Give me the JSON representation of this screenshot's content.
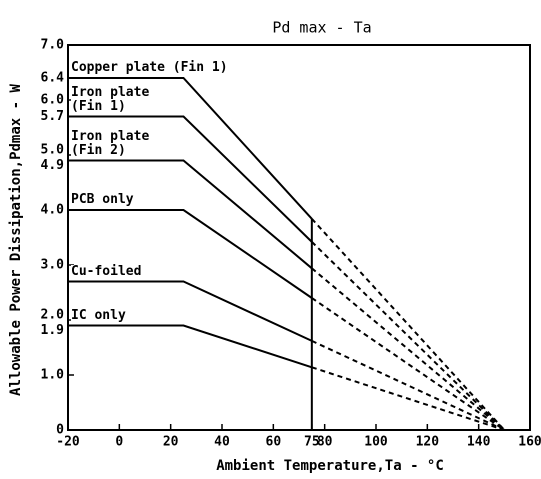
{
  "chart_data": {
    "type": "line",
    "title": "Pd max - Ta",
    "xlabel": "Ambient Temperature,Ta - °C",
    "ylabel": "Allowable Power Dissipation,Pdmax - W",
    "x": [
      -20,
      25,
      75,
      150
    ],
    "series": [
      {
        "name": "Copper plate (Fin 1)",
        "color": "#000000",
        "values": [
          6.4,
          6.4,
          3.84,
          0
        ]
      },
      {
        "name": "Iron plate (Fin 1)",
        "color": "#000000",
        "values": [
          5.7,
          5.7,
          3.42,
          0
        ]
      },
      {
        "name": "Iron plate (Fin 2)",
        "color": "#000000",
        "values": [
          4.9,
          4.9,
          2.94,
          0
        ]
      },
      {
        "name": "PCB only",
        "color": "#000000",
        "values": [
          4.0,
          4.0,
          2.4,
          0
        ]
      },
      {
        "name": "Cu-foiled",
        "color": "#000000",
        "values": [
          2.7,
          2.7,
          1.62,
          0
        ]
      },
      {
        "name": "IC only",
        "color": "#000000",
        "values": [
          1.9,
          1.9,
          1.14,
          0
        ]
      }
    ],
    "xlim": [
      -20,
      160
    ],
    "ylim": [
      0,
      7
    ],
    "xticks": [
      -20,
      0,
      20,
      40,
      60,
      75,
      80,
      100,
      120,
      140,
      160
    ],
    "yticks": [
      0,
      {
        "value": 1,
        "label": "1.0"
      },
      1.9,
      {
        "value": 2,
        "label": "2.0"
      },
      {
        "value": 3,
        "label": "3.0"
      },
      {
        "value": 4,
        "label": "4.0"
      },
      4.9,
      {
        "value": 5,
        "label": "5.0"
      },
      5.7,
      {
        "value": 6,
        "label": "6.0"
      },
      6.4,
      {
        "value": 7,
        "label": "7.0"
      }
    ]
  }
}
